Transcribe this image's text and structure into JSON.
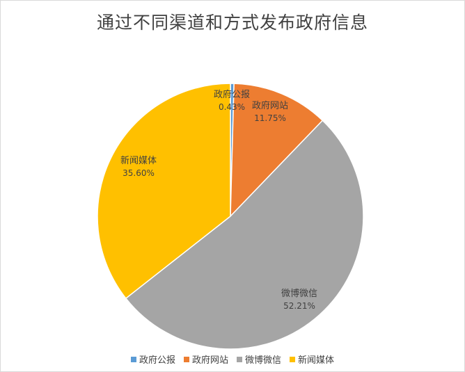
{
  "chart_data": {
    "type": "pie",
    "title": "通过不同渠道和方式发布政府信息",
    "legend_position": "bottom",
    "slices": [
      {
        "label": "政府公报",
        "value": 0.43,
        "display": "0.43%",
        "color": "#5b9bd5"
      },
      {
        "label": "政府网站",
        "value": 11.75,
        "display": "11.75%",
        "color": "#ed7d31"
      },
      {
        "label": "微博微信",
        "value": 52.21,
        "display": "52.21%",
        "color": "#a5a5a5"
      },
      {
        "label": "新闻媒体",
        "value": 35.6,
        "display": "35.60%",
        "color": "#ffc000"
      }
    ]
  }
}
